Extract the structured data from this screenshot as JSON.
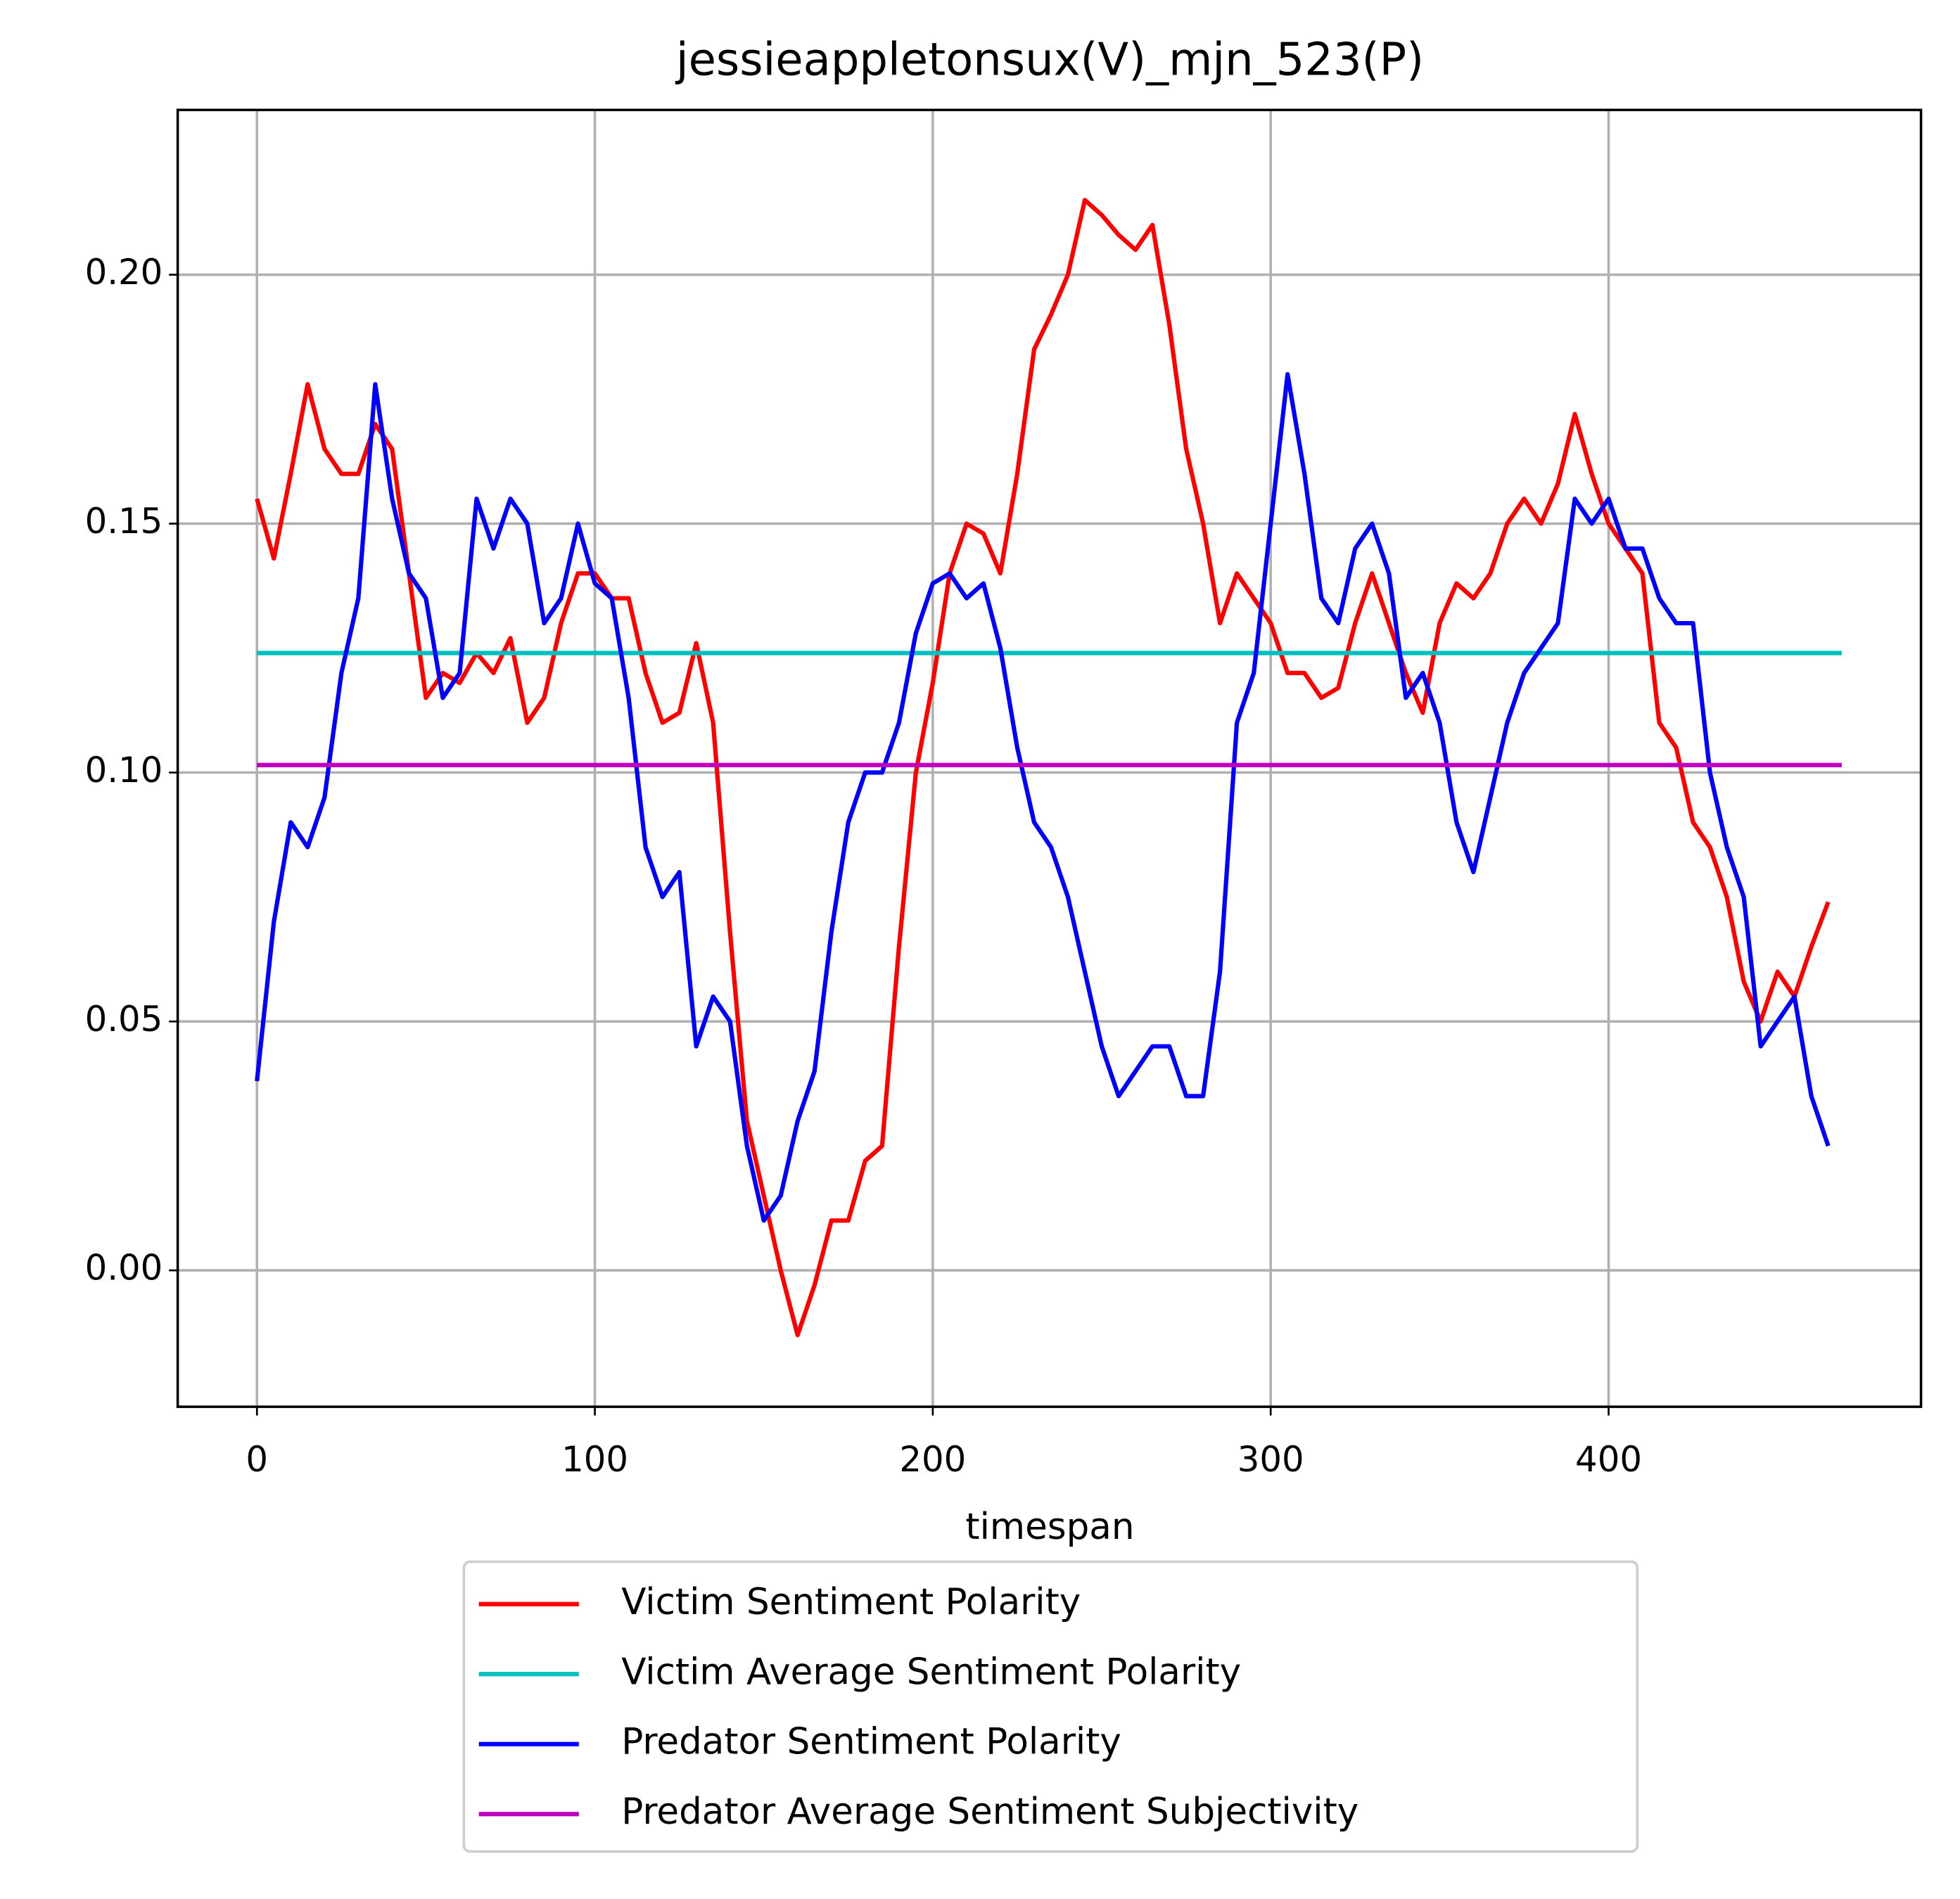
{
  "chart_data": {
    "type": "line",
    "title": "jessieappletonsux(V)_mjn_523(P)",
    "x_label": "timespan",
    "x": [
      0,
      5,
      10,
      15,
      20,
      25,
      30,
      35,
      40,
      45,
      50,
      55,
      60,
      65,
      70,
      75,
      80,
      85,
      90,
      95,
      100,
      105,
      110,
      115,
      120,
      125,
      130,
      135,
      140,
      145,
      150,
      155,
      160,
      165,
      170,
      175,
      180,
      185,
      190,
      195,
      200,
      205,
      210,
      215,
      220,
      225,
      230,
      235,
      240,
      245,
      250,
      255,
      260,
      265,
      270,
      275,
      280,
      285,
      290,
      295,
      300,
      305,
      310,
      315,
      320,
      325,
      330,
      335,
      340,
      345,
      350,
      355,
      360,
      365,
      370,
      375,
      380,
      385,
      390,
      395,
      400,
      405,
      410,
      415,
      420,
      425,
      430,
      435,
      440,
      445,
      450,
      455,
      460,
      465
    ],
    "series": [
      {
        "name": "Victim Sentiment Polarity",
        "color": "#ff0000",
        "values": [
          0.155,
          0.143,
          0.16,
          0.178,
          0.165,
          0.16,
          0.16,
          0.17,
          0.165,
          0.14,
          0.115,
          0.12,
          0.118,
          0.124,
          0.12,
          0.127,
          0.11,
          0.115,
          0.13,
          0.14,
          0.14,
          0.135,
          0.135,
          0.12,
          0.11,
          0.112,
          0.126,
          0.11,
          0.068,
          0.03,
          0.015,
          0.0,
          -0.013,
          -0.003,
          0.01,
          0.01,
          0.022,
          0.025,
          0.065,
          0.1,
          0.118,
          0.14,
          0.15,
          0.148,
          0.14,
          0.16,
          0.185,
          0.192,
          0.2,
          0.215,
          0.212,
          0.208,
          0.205,
          0.21,
          0.19,
          0.165,
          0.15,
          0.13,
          0.14,
          0.135,
          0.13,
          0.12,
          0.12,
          0.115,
          0.117,
          0.13,
          0.14,
          0.13,
          0.12,
          0.112,
          0.13,
          0.138,
          0.135,
          0.14,
          0.15,
          0.155,
          0.15,
          0.158,
          0.172,
          0.16,
          0.15,
          0.145,
          0.14,
          0.11,
          0.105,
          0.09,
          0.085,
          0.075,
          0.058,
          0.05,
          0.06,
          0.055,
          0.065,
          0.074
        ]
      },
      {
        "name": "Victim Average Sentiment Polarity",
        "color": "#00bfbf",
        "x": [
          0,
          469
        ],
        "values": [
          0.124,
          0.124
        ]
      },
      {
        "name": "Predator Sentiment Polarity",
        "color": "#0000ff",
        "values": [
          0.038,
          0.07,
          0.09,
          0.085,
          0.095,
          0.12,
          0.135,
          0.178,
          0.155,
          0.14,
          0.135,
          0.115,
          0.12,
          0.155,
          0.145,
          0.155,
          0.15,
          0.13,
          0.135,
          0.15,
          0.138,
          0.135,
          0.115,
          0.085,
          0.075,
          0.08,
          0.045,
          0.055,
          0.05,
          0.025,
          0.01,
          0.015,
          0.03,
          0.04,
          0.068,
          0.09,
          0.1,
          0.1,
          0.11,
          0.128,
          0.138,
          0.14,
          0.135,
          0.138,
          0.125,
          0.105,
          0.09,
          0.085,
          0.075,
          0.06,
          0.045,
          0.035,
          0.04,
          0.045,
          0.045,
          0.035,
          0.035,
          0.06,
          0.11,
          0.12,
          0.15,
          0.18,
          0.16,
          0.135,
          0.13,
          0.145,
          0.15,
          0.14,
          0.115,
          0.12,
          0.11,
          0.09,
          0.08,
          0.095,
          0.11,
          0.12,
          0.125,
          0.13,
          0.155,
          0.15,
          0.155,
          0.145,
          0.145,
          0.135,
          0.13,
          0.13,
          0.1,
          0.085,
          0.075,
          0.045,
          0.05,
          0.055,
          0.035,
          0.025
        ]
      },
      {
        "name": "Predator Average Sentiment Subjectivity",
        "color": "#bf00bf",
        "x": [
          0,
          469
        ],
        "values": [
          0.1015,
          0.1015
        ]
      }
    ],
    "xlim": [
      -23.45,
      492.45
    ],
    "ylim": [
      -0.0274,
      0.2331
    ],
    "xticks": [
      0,
      100,
      200,
      300,
      400
    ],
    "yticks": [
      {
        "value": 0,
        "label": "0.00"
      },
      {
        "value": 0.05,
        "label": "0.05"
      },
      {
        "value": 0.1,
        "label": "0.10"
      },
      {
        "value": 0.15,
        "label": "0.15"
      },
      {
        "value": 0.2,
        "label": "0.20"
      }
    ],
    "grid": true,
    "legend": "below"
  }
}
